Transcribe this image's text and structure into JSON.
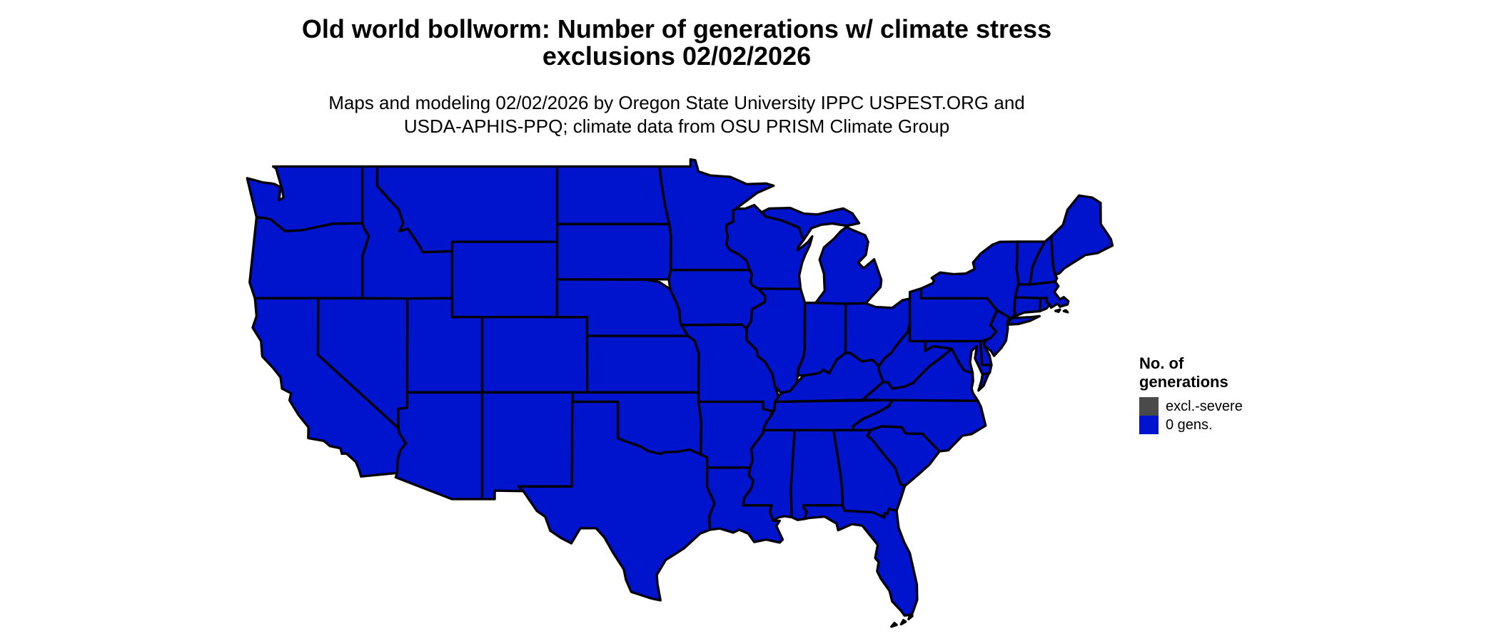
{
  "page": {
    "background": "#ffffff"
  },
  "title": {
    "line1": "Old world bollworm: Number of generations w/ climate stress",
    "line2": "exclusions 02/02/2026"
  },
  "subtitle": {
    "line1": "Maps and modeling 02/02/2026 by Oregon State University IPPC USPEST.ORG and",
    "line2": "USDA-APHIS-PPQ; climate data from OSU PRISM Climate Group"
  },
  "legend": {
    "title_line1": "No. of",
    "title_line2": "generations",
    "items": [
      {
        "label": "excl.-severe",
        "color": "#4a4a4a"
      },
      {
        "label": "0 gens.",
        "color": "#0014CD"
      }
    ]
  },
  "map": {
    "region": "Continental United States",
    "border_color": "#000000",
    "water_background": "#ffffff",
    "states": [
      {
        "abbr": "WA",
        "name": "Washington",
        "value": "0 gens."
      },
      {
        "abbr": "OR",
        "name": "Oregon",
        "value": "0 gens."
      },
      {
        "abbr": "CA",
        "name": "California",
        "value": "0 gens."
      },
      {
        "abbr": "ID",
        "name": "Idaho",
        "value": "0 gens."
      },
      {
        "abbr": "NV",
        "name": "Nevada",
        "value": "0 gens."
      },
      {
        "abbr": "MT",
        "name": "Montana",
        "value": "0 gens."
      },
      {
        "abbr": "WY",
        "name": "Wyoming",
        "value": "0 gens."
      },
      {
        "abbr": "UT",
        "name": "Utah",
        "value": "0 gens."
      },
      {
        "abbr": "AZ",
        "name": "Arizona",
        "value": "0 gens."
      },
      {
        "abbr": "CO",
        "name": "Colorado",
        "value": "0 gens."
      },
      {
        "abbr": "NM",
        "name": "New Mexico",
        "value": "0 gens."
      },
      {
        "abbr": "ND",
        "name": "North Dakota",
        "value": "0 gens."
      },
      {
        "abbr": "SD",
        "name": "South Dakota",
        "value": "0 gens."
      },
      {
        "abbr": "NE",
        "name": "Nebraska",
        "value": "0 gens."
      },
      {
        "abbr": "KS",
        "name": "Kansas",
        "value": "0 gens."
      },
      {
        "abbr": "OK",
        "name": "Oklahoma",
        "value": "0 gens."
      },
      {
        "abbr": "TX",
        "name": "Texas",
        "value": "0 gens."
      },
      {
        "abbr": "MN",
        "name": "Minnesota",
        "value": "0 gens."
      },
      {
        "abbr": "IA",
        "name": "Iowa",
        "value": "0 gens."
      },
      {
        "abbr": "MO",
        "name": "Missouri",
        "value": "0 gens."
      },
      {
        "abbr": "AR",
        "name": "Arkansas",
        "value": "0 gens."
      },
      {
        "abbr": "LA",
        "name": "Louisiana",
        "value": "0 gens."
      },
      {
        "abbr": "WI",
        "name": "Wisconsin",
        "value": "0 gens."
      },
      {
        "abbr": "IL",
        "name": "Illinois",
        "value": "0 gens."
      },
      {
        "abbr": "MS",
        "name": "Mississippi",
        "value": "0 gens."
      },
      {
        "abbr": "AL",
        "name": "Alabama",
        "value": "0 gens."
      },
      {
        "abbr": "TN",
        "name": "Tennessee",
        "value": "0 gens."
      },
      {
        "abbr": "KY",
        "name": "Kentucky",
        "value": "0 gens."
      },
      {
        "abbr": "IN",
        "name": "Indiana",
        "value": "0 gens."
      },
      {
        "abbr": "MI",
        "name": "Michigan",
        "value": "0 gens."
      },
      {
        "abbr": "OH",
        "name": "Ohio",
        "value": "0 gens."
      },
      {
        "abbr": "GA",
        "name": "Georgia",
        "value": "0 gens."
      },
      {
        "abbr": "FL",
        "name": "Florida",
        "value": "0 gens."
      },
      {
        "abbr": "SC",
        "name": "South Carolina",
        "value": "0 gens."
      },
      {
        "abbr": "NC",
        "name": "North Carolina",
        "value": "0 gens."
      },
      {
        "abbr": "VA",
        "name": "Virginia",
        "value": "0 gens."
      },
      {
        "abbr": "WV",
        "name": "West Virginia",
        "value": "0 gens."
      },
      {
        "abbr": "PA",
        "name": "Pennsylvania",
        "value": "0 gens."
      },
      {
        "abbr": "NY",
        "name": "New York",
        "value": "0 gens."
      },
      {
        "abbr": "MD",
        "name": "Maryland",
        "value": "0 gens."
      },
      {
        "abbr": "DE",
        "name": "Delaware",
        "value": "0 gens."
      },
      {
        "abbr": "NJ",
        "name": "New Jersey",
        "value": "0 gens."
      },
      {
        "abbr": "CT",
        "name": "Connecticut",
        "value": "0 gens."
      },
      {
        "abbr": "RI",
        "name": "Rhode Island",
        "value": "0 gens."
      },
      {
        "abbr": "MA",
        "name": "Massachusetts",
        "value": "0 gens."
      },
      {
        "abbr": "VT",
        "name": "Vermont",
        "value": "0 gens."
      },
      {
        "abbr": "NH",
        "name": "New Hampshire",
        "value": "0 gens."
      },
      {
        "abbr": "ME",
        "name": "Maine",
        "value": "0 gens."
      }
    ]
  },
  "chart_data": {
    "type": "choropleth_map",
    "title": "Old world bollworm: Number of generations w/ climate stress exclusions 02/02/2026",
    "legend_title": "No. of generations",
    "categories": [
      "excl.-severe",
      "0 gens."
    ],
    "region": "Continental United States",
    "summary": "All 48 contiguous states shown in the '0 gens.' category (blue); no areas shown as 'excl.-severe' (gray)."
  }
}
